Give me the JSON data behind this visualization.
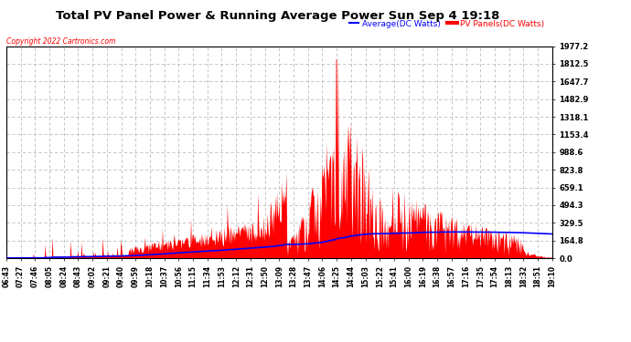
{
  "title": "Total PV Panel Power & Running Average Power Sun Sep 4 19:18",
  "copyright": "Copyright 2022 Cartronics.com",
  "legend_avg": "Average(DC Watts)",
  "legend_pv": "PV Panels(DC Watts)",
  "yticks": [
    0.0,
    164.8,
    329.5,
    494.3,
    659.1,
    823.8,
    988.6,
    1153.4,
    1318.1,
    1482.9,
    1647.7,
    1812.5,
    1977.2
  ],
  "ymax": 1977.2,
  "bg_color": "#ffffff",
  "grid_color": "#aaaaaa",
  "fill_color": "#ff0000",
  "avg_color": "#0000ff",
  "title_color": "#000000",
  "copyright_color": "#ff0000",
  "legend_avg_color": "#0000ff",
  "legend_pv_color": "#ff0000",
  "xtick_labels": [
    "06:43",
    "07:27",
    "07:46",
    "08:05",
    "08:24",
    "08:43",
    "09:02",
    "09:21",
    "09:40",
    "09:59",
    "10:18",
    "10:37",
    "10:56",
    "11:15",
    "11:34",
    "11:53",
    "12:12",
    "12:31",
    "12:50",
    "13:09",
    "13:28",
    "13:47",
    "14:06",
    "14:25",
    "14:44",
    "15:03",
    "15:22",
    "15:41",
    "16:00",
    "16:19",
    "16:38",
    "16:57",
    "17:16",
    "17:35",
    "17:54",
    "18:13",
    "18:32",
    "18:51",
    "19:10"
  ]
}
